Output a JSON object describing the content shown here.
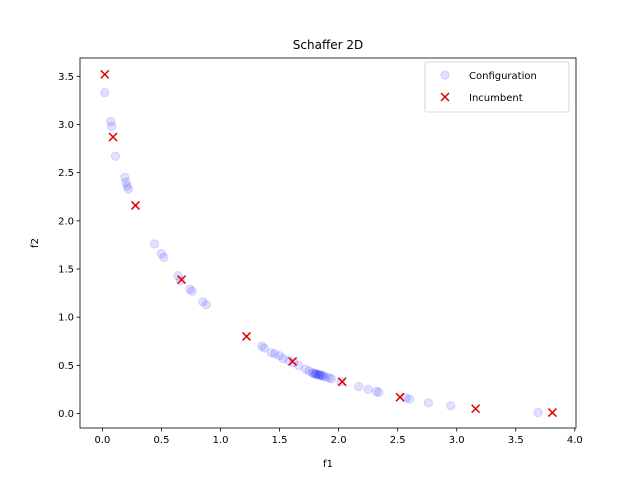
{
  "chart_data": {
    "type": "scatter",
    "title": "Schaffer 2D",
    "xlabel": "f1",
    "ylabel": "f2",
    "xlim": [
      -0.19,
      4.01
    ],
    "ylim": [
      -0.15,
      3.69
    ],
    "xticks": [
      0.0,
      0.5,
      1.0,
      1.5,
      2.0,
      2.5,
      3.0,
      3.5,
      4.0
    ],
    "xtick_labels": [
      "0.0",
      "0.5",
      "1.0",
      "1.5",
      "2.0",
      "2.5",
      "3.0",
      "3.5",
      "4.0"
    ],
    "yticks": [
      0.0,
      0.5,
      1.0,
      1.5,
      2.0,
      2.5,
      3.0,
      3.5
    ],
    "ytick_labels": [
      "0.0",
      "0.5",
      "1.0",
      "1.5",
      "2.0",
      "2.5",
      "3.0",
      "3.5"
    ],
    "grid": false,
    "legend_position": "top-right",
    "series": [
      {
        "name": "Configuration",
        "marker": "circle",
        "color": "#0000ff",
        "alpha": 0.12,
        "points": [
          [
            0.02,
            3.33
          ],
          [
            0.07,
            3.03
          ],
          [
            0.08,
            2.98
          ],
          [
            0.11,
            2.67
          ],
          [
            0.19,
            2.45
          ],
          [
            0.2,
            2.4
          ],
          [
            0.21,
            2.36
          ],
          [
            0.22,
            2.33
          ],
          [
            0.44,
            1.76
          ],
          [
            0.5,
            1.66
          ],
          [
            0.52,
            1.62
          ],
          [
            0.64,
            1.43
          ],
          [
            0.66,
            1.38
          ],
          [
            0.74,
            1.29
          ],
          [
            0.76,
            1.27
          ],
          [
            0.85,
            1.16
          ],
          [
            0.88,
            1.13
          ],
          [
            1.35,
            0.7
          ],
          [
            1.37,
            0.68
          ],
          [
            1.43,
            0.63
          ],
          [
            1.46,
            0.62
          ],
          [
            1.5,
            0.6
          ],
          [
            1.53,
            0.57
          ],
          [
            1.58,
            0.55
          ],
          [
            1.62,
            0.53
          ],
          [
            1.66,
            0.5
          ],
          [
            1.72,
            0.46
          ],
          [
            1.75,
            0.44
          ],
          [
            1.78,
            0.42
          ],
          [
            1.79,
            0.42
          ],
          [
            1.8,
            0.41
          ],
          [
            1.81,
            0.41
          ],
          [
            1.82,
            0.41
          ],
          [
            1.83,
            0.4
          ],
          [
            1.84,
            0.4
          ],
          [
            1.85,
            0.4
          ],
          [
            1.86,
            0.39
          ],
          [
            1.87,
            0.39
          ],
          [
            1.89,
            0.38
          ],
          [
            1.92,
            0.37
          ],
          [
            1.94,
            0.36
          ],
          [
            2.02,
            0.33
          ],
          [
            2.17,
            0.28
          ],
          [
            2.25,
            0.25
          ],
          [
            2.32,
            0.23
          ],
          [
            2.34,
            0.22
          ],
          [
            2.57,
            0.16
          ],
          [
            2.6,
            0.15
          ],
          [
            2.76,
            0.11
          ],
          [
            2.95,
            0.08
          ],
          [
            3.69,
            0.01
          ]
        ]
      },
      {
        "name": "Incumbent",
        "marker": "x",
        "color": "#e00000",
        "points": [
          [
            0.02,
            3.52
          ],
          [
            0.09,
            2.87
          ],
          [
            0.28,
            2.16
          ],
          [
            0.67,
            1.39
          ],
          [
            1.22,
            0.8
          ],
          [
            1.61,
            0.54
          ],
          [
            2.03,
            0.33
          ],
          [
            2.52,
            0.17
          ],
          [
            3.16,
            0.05
          ],
          [
            3.81,
            0.01
          ]
        ]
      }
    ]
  }
}
